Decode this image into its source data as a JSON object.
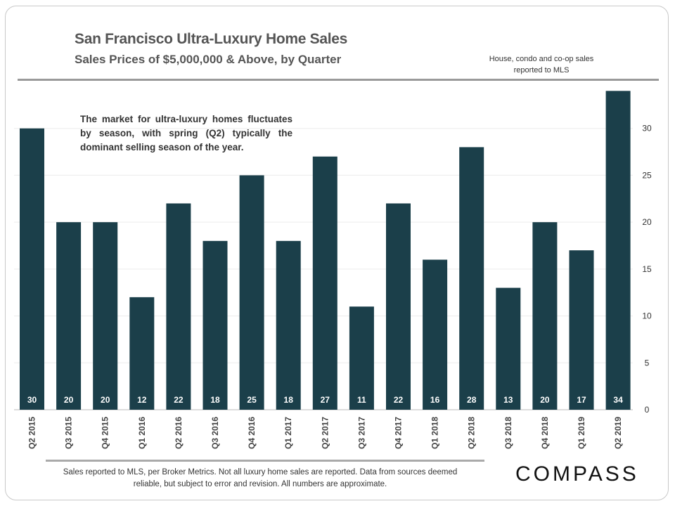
{
  "header": {
    "title": "San Francisco Ultra-Luxury Home Sales",
    "subtitle": "Sales Prices of $5,000,000 & Above, by Quarter",
    "note": "House, condo and co-op sales reported to MLS"
  },
  "annotation": "The market for ultra-luxury homes fluctuates by season, with spring (Q2) typically the dominant selling season of the year.",
  "footer": {
    "text": "Sales reported to MLS, per Broker Metrics.  Not all  luxury home sales are reported. Data from sources deemed reliable, but subject to error and revision. All numbers are approximate.",
    "logo": "COMPASS"
  },
  "chart_data": {
    "type": "bar",
    "categories": [
      "Q2 2015",
      "Q3 2015",
      "Q4 2015",
      "Q1 2016",
      "Q2 2016",
      "Q3 2016",
      "Q4 2016",
      "Q1 2017",
      "Q2 2017",
      "Q3 2017",
      "Q4 2017",
      "Q1 2018",
      "Q2 2018",
      "Q3 2018",
      "Q4 2018",
      "Q1 2019",
      "Q2 2019"
    ],
    "values": [
      30,
      20,
      20,
      12,
      22,
      18,
      25,
      18,
      27,
      11,
      22,
      16,
      28,
      13,
      20,
      17,
      34
    ],
    "ylim": [
      0,
      35
    ],
    "yticks": [
      0,
      5,
      10,
      15,
      20,
      25,
      30
    ],
    "yaxis_side": "right",
    "grid": true,
    "data_labels": "inside-bottom",
    "bar_color": "#1b3f4a",
    "label_color": "#ffffff"
  }
}
